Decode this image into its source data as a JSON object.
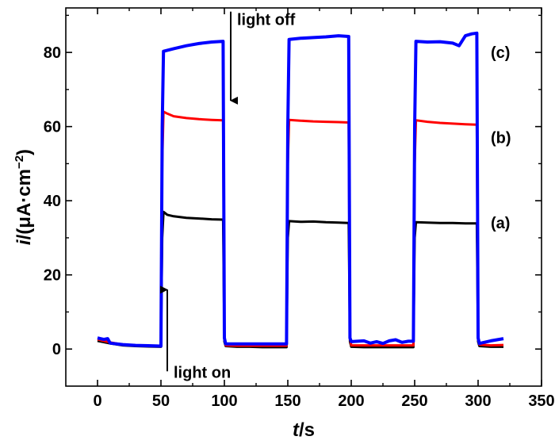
{
  "chart_data": {
    "type": "line",
    "title": "",
    "xlabel": {
      "italic": "t",
      "rest": "/s"
    },
    "ylabel": {
      "italic": "i",
      "rest": "/(μA·cm",
      "sup": "−2",
      "close": ")"
    },
    "xlim": [
      -25,
      350
    ],
    "ylim": [
      -10,
      92
    ],
    "xticks": [
      0,
      50,
      100,
      150,
      200,
      250,
      300,
      350
    ],
    "yticks": [
      0,
      20,
      40,
      60,
      80
    ],
    "grid": false,
    "legend": "none",
    "annotations": [
      {
        "text": "light off",
        "x": 105,
        "arrow_from_y": 91,
        "arrow_to_y": 67
      },
      {
        "text": "light on",
        "x": 55,
        "arrow_from_y": -6,
        "arrow_to_y": 16
      }
    ],
    "series": [
      {
        "name": "(a)",
        "color": "#000000",
        "points": [
          [
            0,
            2.2
          ],
          [
            10,
            1.5
          ],
          [
            20,
            1.0
          ],
          [
            30,
            0.8
          ],
          [
            40,
            0.7
          ],
          [
            50,
            0.6
          ],
          [
            51,
            30
          ],
          [
            52,
            37
          ],
          [
            55,
            36.2
          ],
          [
            60,
            35.8
          ],
          [
            70,
            35.4
          ],
          [
            80,
            35.2
          ],
          [
            90,
            35.0
          ],
          [
            99,
            34.9
          ],
          [
            100,
            2.0
          ],
          [
            101,
            0.8
          ],
          [
            110,
            0.6
          ],
          [
            120,
            0.6
          ],
          [
            130,
            0.5
          ],
          [
            140,
            0.5
          ],
          [
            149,
            0.5
          ],
          [
            150,
            30
          ],
          [
            151,
            34.5
          ],
          [
            160,
            34.3
          ],
          [
            170,
            34.4
          ],
          [
            180,
            34.2
          ],
          [
            190,
            34.1
          ],
          [
            198,
            34.0
          ],
          [
            199,
            2.0
          ],
          [
            200,
            0.6
          ],
          [
            210,
            0.5
          ],
          [
            220,
            0.5
          ],
          [
            230,
            0.5
          ],
          [
            240,
            0.5
          ],
          [
            249,
            0.5
          ],
          [
            250,
            30
          ],
          [
            251,
            34.2
          ],
          [
            260,
            34.1
          ],
          [
            270,
            34.0
          ],
          [
            280,
            34.0
          ],
          [
            290,
            33.9
          ],
          [
            299,
            33.9
          ],
          [
            300,
            2.0
          ],
          [
            301,
            0.8
          ],
          [
            310,
            0.6
          ],
          [
            320,
            0.6
          ]
        ],
        "label": {
          "text": "(a)",
          "x": 310,
          "y": 34
        }
      },
      {
        "name": "(b)",
        "color": "#ff0000",
        "points": [
          [
            0,
            2.6
          ],
          [
            10,
            1.8
          ],
          [
            20,
            1.2
          ],
          [
            30,
            1.0
          ],
          [
            40,
            0.9
          ],
          [
            50,
            0.8
          ],
          [
            51,
            50
          ],
          [
            52,
            64
          ],
          [
            55,
            63.5
          ],
          [
            60,
            62.8
          ],
          [
            70,
            62.3
          ],
          [
            80,
            62.0
          ],
          [
            90,
            61.8
          ],
          [
            99,
            61.7
          ],
          [
            100,
            3.0
          ],
          [
            101,
            1.0
          ],
          [
            110,
            0.9
          ],
          [
            120,
            0.9
          ],
          [
            130,
            0.9
          ],
          [
            140,
            0.9
          ],
          [
            149,
            0.9
          ],
          [
            150,
            50
          ],
          [
            151,
            61.8
          ],
          [
            160,
            61.6
          ],
          [
            170,
            61.4
          ],
          [
            180,
            61.3
          ],
          [
            190,
            61.2
          ],
          [
            198,
            61.1
          ],
          [
            199,
            3.0
          ],
          [
            200,
            1.0
          ],
          [
            210,
            1.0
          ],
          [
            220,
            1.0
          ],
          [
            230,
            1.0
          ],
          [
            240,
            1.0
          ],
          [
            249,
            1.0
          ],
          [
            250,
            50
          ],
          [
            251,
            61.7
          ],
          [
            260,
            61.3
          ],
          [
            270,
            61.0
          ],
          [
            280,
            60.8
          ],
          [
            290,
            60.6
          ],
          [
            299,
            60.5
          ],
          [
            300,
            3.0
          ],
          [
            301,
            1.2
          ],
          [
            310,
            1.0
          ],
          [
            320,
            1.1
          ]
        ],
        "label": {
          "text": "(b)",
          "x": 310,
          "y": 57
        }
      },
      {
        "name": "(c)",
        "color": "#0000ff",
        "points": [
          [
            0,
            3.0
          ],
          [
            5,
            2.6
          ],
          [
            8,
            2.8
          ],
          [
            10,
            1.6
          ],
          [
            20,
            1.2
          ],
          [
            30,
            1.0
          ],
          [
            40,
            0.9
          ],
          [
            50,
            0.8
          ],
          [
            51,
            60
          ],
          [
            52,
            80.3
          ],
          [
            60,
            81.0
          ],
          [
            70,
            81.8
          ],
          [
            80,
            82.4
          ],
          [
            90,
            82.8
          ],
          [
            99,
            83.0
          ],
          [
            100,
            3.0
          ],
          [
            101,
            1.4
          ],
          [
            110,
            1.4
          ],
          [
            120,
            1.4
          ],
          [
            130,
            1.4
          ],
          [
            140,
            1.4
          ],
          [
            149,
            1.4
          ],
          [
            150,
            60
          ],
          [
            151,
            83.5
          ],
          [
            160,
            83.8
          ],
          [
            170,
            84.0
          ],
          [
            180,
            84.2
          ],
          [
            190,
            84.5
          ],
          [
            198,
            84.3
          ],
          [
            199,
            3.0
          ],
          [
            200,
            2.0
          ],
          [
            210,
            2.2
          ],
          [
            215,
            1.6
          ],
          [
            220,
            2.0
          ],
          [
            225,
            1.5
          ],
          [
            230,
            2.2
          ],
          [
            235,
            2.5
          ],
          [
            240,
            1.8
          ],
          [
            245,
            2.1
          ],
          [
            249,
            2.1
          ],
          [
            250,
            60
          ],
          [
            251,
            83.0
          ],
          [
            260,
            82.8
          ],
          [
            270,
            82.9
          ],
          [
            280,
            82.5
          ],
          [
            285,
            81.8
          ],
          [
            290,
            84.5
          ],
          [
            295,
            85.0
          ],
          [
            299,
            85.2
          ],
          [
            300,
            3.0
          ],
          [
            301,
            1.5
          ],
          [
            310,
            2.2
          ],
          [
            320,
            2.8
          ]
        ],
        "label": {
          "text": "(c)",
          "x": 310,
          "y": 80
        }
      }
    ]
  }
}
